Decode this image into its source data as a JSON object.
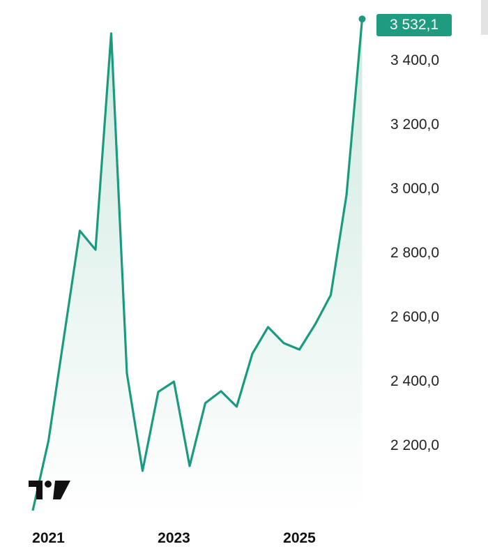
{
  "chart_data": {
    "type": "area",
    "title": "",
    "xlabel": "",
    "ylabel": "",
    "categories": [
      "2020-Q4",
      "2021-Q1",
      "2021-Q2",
      "2021-Q3",
      "2021-Q4",
      "2022-Q1",
      "2022-Q2",
      "2022-Q3",
      "2022-Q4",
      "2023-Q1",
      "2023-Q2",
      "2023-Q3",
      "2023-Q4",
      "2024-Q1",
      "2024-Q2",
      "2024-Q3",
      "2024-Q4",
      "2025-Q1",
      "2025-Q2",
      "2025-Q3",
      "2025-Q4",
      "2026-Q1"
    ],
    "values": [
      2000,
      2217,
      2545,
      2872,
      2813,
      3487,
      2428,
      2124,
      2370,
      2402,
      2139,
      2335,
      2372,
      2324,
      2489,
      2572,
      2522,
      2502,
      2580,
      2672,
      2983,
      3532.1
    ],
    "x_ticks": [
      "2021",
      "2023",
      "2025"
    ],
    "x_tick_categories": [
      "2021-Q1",
      "2023-Q1",
      "2025-Q1"
    ],
    "y_ticks": [
      "3 400,0",
      "3 200,0",
      "3 000,0",
      "2 800,0",
      "2 600,0",
      "2 400,0",
      "2 200,0"
    ],
    "y_tick_values": [
      3400,
      3200,
      3000,
      2800,
      2600,
      2400,
      2200
    ],
    "ylim": [
      2000,
      3530
    ],
    "last_value_label": "3 532,1",
    "grid": false,
    "legend": "none",
    "colors": {
      "line": "#1a9a7f",
      "label_bg": "#1f9b7f",
      "fill_top": "#cfe9e0",
      "fill_bottom": "#ffffff"
    }
  },
  "logo": "TradingView"
}
